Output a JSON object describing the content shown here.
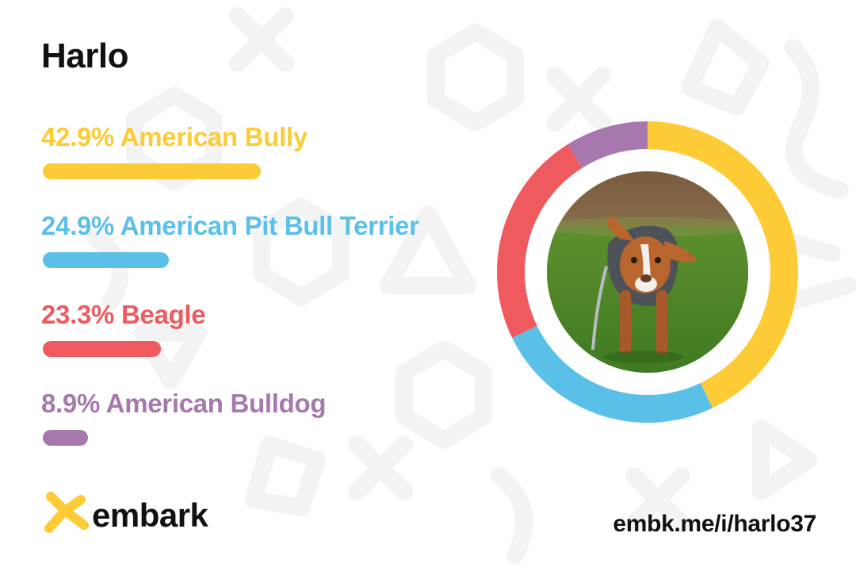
{
  "dog_name": "Harlo",
  "share_url": "embk.me/i/harlo37",
  "logo": {
    "text": "embark",
    "mark_icon": "embark-star-icon"
  },
  "photo": {
    "subject": "dog-photo"
  },
  "colors": {
    "american_bully": "#FDCB36",
    "american_pit_bull_terrier": "#5BC0E8",
    "beagle": "#EE5A5E",
    "american_bulldog": "#A678AE",
    "text": "#111111"
  },
  "breeds": [
    {
      "label": "42.9% American Bully",
      "percent": 42.9,
      "color": "#FDCB36"
    },
    {
      "label": "24.9% American Pit Bull Terrier",
      "percent": 24.9,
      "color": "#5BC0E8"
    },
    {
      "label": "23.3% Beagle",
      "percent": 23.3,
      "color": "#EE5A5E"
    },
    {
      "label": "8.9% American Bulldog",
      "percent": 8.9,
      "color": "#A678AE"
    }
  ],
  "chart_data": {
    "type": "pie",
    "title": "",
    "categories": [
      "American Bully",
      "American Pit Bull Terrier",
      "Beagle",
      "American Bulldog"
    ],
    "values": [
      42.9,
      24.9,
      23.3,
      8.9
    ],
    "colors": [
      "#FDCB36",
      "#5BC0E8",
      "#EE5A5E",
      "#A678AE"
    ],
    "donut": true,
    "start": "top, clockwise",
    "legend": "left (breed list with bars)"
  }
}
